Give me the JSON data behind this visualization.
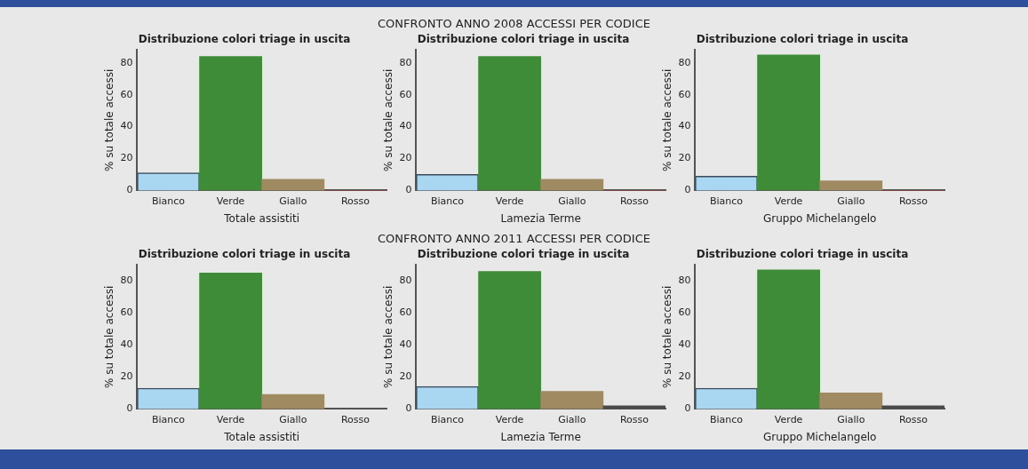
{
  "chart_data": [
    {
      "type": "bar",
      "title": "Distribuzione colori triage in uscita",
      "xlabel": "Totale assistiti",
      "ylabel": "% su totale accessi",
      "annotations": [
        "CONFRONTO ANNO 2008 ACCESSI PER CODICE"
      ],
      "categories": [
        "Bianco",
        "Verde",
        "Giallo",
        "Rosso"
      ],
      "values": [
        11,
        84,
        7,
        0
      ],
      "colors": [
        "#a9d7f2",
        "#3f8c38",
        "#a08a62",
        "#c0392b"
      ],
      "ylim": [
        0,
        88
      ],
      "yticks": [
        0,
        20,
        40,
        60,
        80
      ],
      "grid": false,
      "legend": false
    },
    {
      "type": "bar",
      "title": "Distribuzione colori triage in uscita",
      "xlabel": "Lamezia Terme",
      "ylabel": "% su totale accessi",
      "categories": [
        "Bianco",
        "Verde",
        "Giallo",
        "Rosso"
      ],
      "values": [
        10,
        84,
        7,
        0
      ],
      "colors": [
        "#a9d7f2",
        "#3f8c38",
        "#a08a62",
        "#c0392b"
      ],
      "ylim": [
        0,
        88
      ],
      "yticks": [
        0,
        20,
        40,
        60,
        80
      ],
      "grid": false,
      "legend": false
    },
    {
      "type": "bar",
      "title": "Distribuzione colori triage in uscita",
      "xlabel": "Gruppo Michelangelo",
      "ylabel": "% su totale accessi",
      "categories": [
        "Bianco",
        "Verde",
        "Giallo",
        "Rosso"
      ],
      "values": [
        9,
        85,
        6,
        0
      ],
      "colors": [
        "#a9d7f2",
        "#3f8c38",
        "#a08a62",
        "#c0392b"
      ],
      "ylim": [
        0,
        88
      ],
      "yticks": [
        0,
        20,
        40,
        60,
        80
      ],
      "grid": false,
      "legend": false
    },
    {
      "type": "bar",
      "title": "Distribuzione colori triage in uscita",
      "xlabel": "Totale assistiti",
      "ylabel": "% su totale accessi",
      "annotations": [
        "CONFRONTO ANNO 2011 ACCESSI PER CODICE"
      ],
      "categories": [
        "Bianco",
        "Verde",
        "Giallo",
        "Rosso"
      ],
      "values": [
        13,
        85,
        9,
        0
      ],
      "colors": [
        "#a9d7f2",
        "#3f8c38",
        "#a08a62",
        "#4a4a4a"
      ],
      "ylim": [
        0,
        90
      ],
      "yticks": [
        0,
        20,
        40,
        60,
        80
      ],
      "grid": false,
      "legend": false
    },
    {
      "type": "bar",
      "title": "Distribuzione colori triage in uscita",
      "xlabel": "Lamezia Terme",
      "ylabel": "% su totale accessi",
      "categories": [
        "Bianco",
        "Verde",
        "Giallo",
        "Rosso"
      ],
      "values": [
        14,
        86,
        11,
        2
      ],
      "colors": [
        "#a9d7f2",
        "#3f8c38",
        "#a08a62",
        "#4a4a4a"
      ],
      "ylim": [
        0,
        90
      ],
      "yticks": [
        0,
        20,
        40,
        60,
        80
      ],
      "grid": false,
      "legend": false
    },
    {
      "type": "bar",
      "title": "Distribuzione colori triage in uscita",
      "xlabel": "Gruppo Michelangelo",
      "ylabel": "% su totale accessi",
      "categories": [
        "Bianco",
        "Verde",
        "Giallo",
        "Rosso"
      ],
      "values": [
        13,
        87,
        10,
        2
      ],
      "colors": [
        "#a9d7f2",
        "#3f8c38",
        "#a08a62",
        "#4a4a4a"
      ],
      "ylim": [
        0,
        90
      ],
      "yticks": [
        0,
        20,
        40,
        60,
        80
      ],
      "grid": false,
      "legend": false
    }
  ]
}
